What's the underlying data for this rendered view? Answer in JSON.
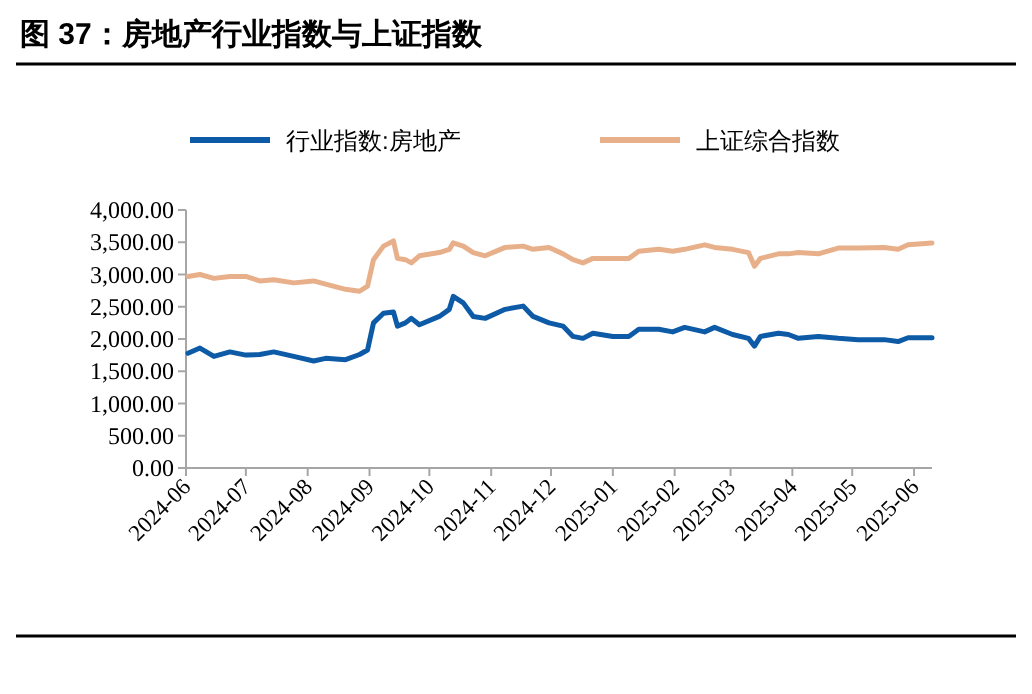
{
  "chart_data": {
    "type": "line",
    "title": "图 37：房地产行业指数与上证指数",
    "x": [
      "2024-06-02",
      "2024-06-08",
      "2024-06-15",
      "2024-06-23",
      "2024-07-01",
      "2024-07-08",
      "2024-07-15",
      "2024-07-25",
      "2024-08-04",
      "2024-08-10",
      "2024-08-20",
      "2024-08-27",
      "2024-08-31",
      "2024-09-03",
      "2024-09-08",
      "2024-09-13",
      "2024-09-15",
      "2024-09-19",
      "2024-09-22",
      "2024-09-26",
      "2024-10-06",
      "2024-10-11",
      "2024-10-13",
      "2024-10-18",
      "2024-10-23",
      "2024-10-29",
      "2024-11-08",
      "2024-11-17",
      "2024-11-22",
      "2024-11-30",
      "2024-12-07",
      "2024-12-12",
      "2024-12-17",
      "2024-12-22",
      "2025-01-01",
      "2025-01-09",
      "2025-01-14",
      "2025-01-24",
      "2025-01-31",
      "2025-02-06",
      "2025-02-16",
      "2025-02-21",
      "2025-03-02",
      "2025-03-10",
      "2025-03-13",
      "2025-03-16",
      "2025-03-25",
      "2025-03-30",
      "2025-04-04",
      "2025-04-14",
      "2025-04-24",
      "2025-05-04",
      "2025-05-17",
      "2025-05-24",
      "2025-05-29",
      "2025-06-10"
    ],
    "series": [
      {
        "name": "行业指数:房地产",
        "color": "#0d5aa7",
        "values": [
          1780,
          1860,
          1730,
          1800,
          1750,
          1760,
          1800,
          1730,
          1660,
          1700,
          1680,
          1760,
          1830,
          2250,
          2400,
          2420,
          2200,
          2250,
          2320,
          2220,
          2350,
          2460,
          2660,
          2560,
          2350,
          2320,
          2460,
          2510,
          2350,
          2250,
          2200,
          2040,
          2010,
          2090,
          2040,
          2040,
          2150,
          2150,
          2110,
          2180,
          2110,
          2180,
          2070,
          2010,
          1890,
          2040,
          2090,
          2070,
          2010,
          2040,
          2010,
          1990,
          1990,
          1960,
          2020,
          2020
        ]
      },
      {
        "name": "上证综合指数",
        "color": "#e8b08a",
        "values": [
          2970,
          3000,
          2940,
          2970,
          2970,
          2900,
          2920,
          2870,
          2900,
          2850,
          2770,
          2740,
          2820,
          3230,
          3440,
          3520,
          3250,
          3230,
          3180,
          3290,
          3340,
          3390,
          3490,
          3440,
          3340,
          3290,
          3420,
          3440,
          3390,
          3420,
          3320,
          3230,
          3180,
          3250,
          3250,
          3250,
          3360,
          3390,
          3360,
          3390,
          3460,
          3420,
          3390,
          3340,
          3130,
          3250,
          3320,
          3320,
          3340,
          3320,
          3410,
          3410,
          3420,
          3390,
          3460,
          3490
        ]
      }
    ],
    "xlim": [
      "2024-06-01",
      "2025-06-10"
    ],
    "xticks": [
      {
        "value": "2024-06-01",
        "label": "2024-06"
      },
      {
        "value": "2024-07-01",
        "label": "2024-07"
      },
      {
        "value": "2024-08-01",
        "label": "2024-08"
      },
      {
        "value": "2024-09-01",
        "label": "2024-09"
      },
      {
        "value": "2024-10-01",
        "label": "2024-10"
      },
      {
        "value": "2024-11-01",
        "label": "2024-11"
      },
      {
        "value": "2024-12-01",
        "label": "2024-12"
      },
      {
        "value": "2025-01-01",
        "label": "2025-01"
      },
      {
        "value": "2025-02-01",
        "label": "2025-02"
      },
      {
        "value": "2025-03-01",
        "label": "2025-03"
      },
      {
        "value": "2025-04-01",
        "label": "2025-04"
      },
      {
        "value": "2025-05-01",
        "label": "2025-05"
      },
      {
        "value": "2025-06-01",
        "label": "2025-06"
      }
    ],
    "ylim": [
      0,
      4000
    ],
    "yticks": [
      {
        "value": 0,
        "label": "0.00"
      },
      {
        "value": 500,
        "label": "500.00"
      },
      {
        "value": 1000,
        "label": "1,000.00"
      },
      {
        "value": 1500,
        "label": "1,500.00"
      },
      {
        "value": 2000,
        "label": "2,000.00"
      },
      {
        "value": 2500,
        "label": "2,500.00"
      },
      {
        "value": 3000,
        "label": "3,000.00"
      },
      {
        "value": 3500,
        "label": "3,500.00"
      },
      {
        "value": 4000,
        "label": "4,000.00"
      }
    ],
    "legend": "top"
  }
}
